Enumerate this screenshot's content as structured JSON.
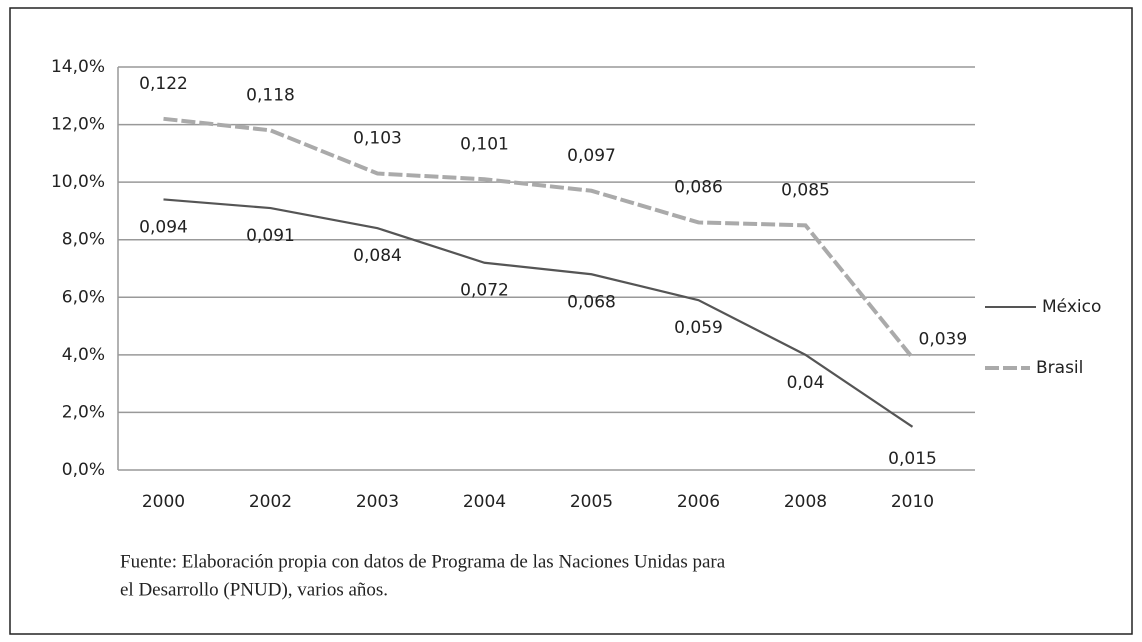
{
  "chart_data": {
    "type": "line",
    "categories": [
      "2000",
      "2002",
      "2003",
      "2004",
      "2005",
      "2006",
      "2008",
      "2010"
    ],
    "series": [
      {
        "name": "México",
        "color": "#555555",
        "values": [
          9.4,
          9.1,
          8.4,
          7.2,
          6.8,
          5.9,
          4.0,
          1.5
        ],
        "value_labels": [
          "0,094",
          "0,091",
          "0,084",
          "0,072",
          "0,068",
          "0,059",
          "0,04",
          "0,015"
        ]
      },
      {
        "name": "Brasil",
        "color": "#aaaaaa",
        "dashed": true,
        "values": [
          12.2,
          11.8,
          10.3,
          10.1,
          9.7,
          8.6,
          8.5,
          3.9
        ],
        "value_labels": [
          "0,122",
          "0,118",
          "0,103",
          "0,101",
          "0,097",
          "0,086",
          "0,085",
          "0,039"
        ]
      }
    ],
    "ylim": [
      0,
      14
    ],
    "yticks": [
      {
        "value": 0,
        "label": "0,0%"
      },
      {
        "value": 2,
        "label": "2,0%"
      },
      {
        "value": 4,
        "label": "4,0%"
      },
      {
        "value": 6,
        "label": "6,0%"
      },
      {
        "value": 8,
        "label": "8,0%"
      },
      {
        "value": 10,
        "label": "10,0%"
      },
      {
        "value": 12,
        "label": "12,0%"
      },
      {
        "value": 14,
        "label": "14,0%"
      }
    ],
    "grid": true,
    "legend": "right",
    "source": [
      "Fuente: Elaboración propia con datos de Programa de las Naciones Unidas para",
      "el Desarrollo (PNUD), varios años."
    ]
  }
}
